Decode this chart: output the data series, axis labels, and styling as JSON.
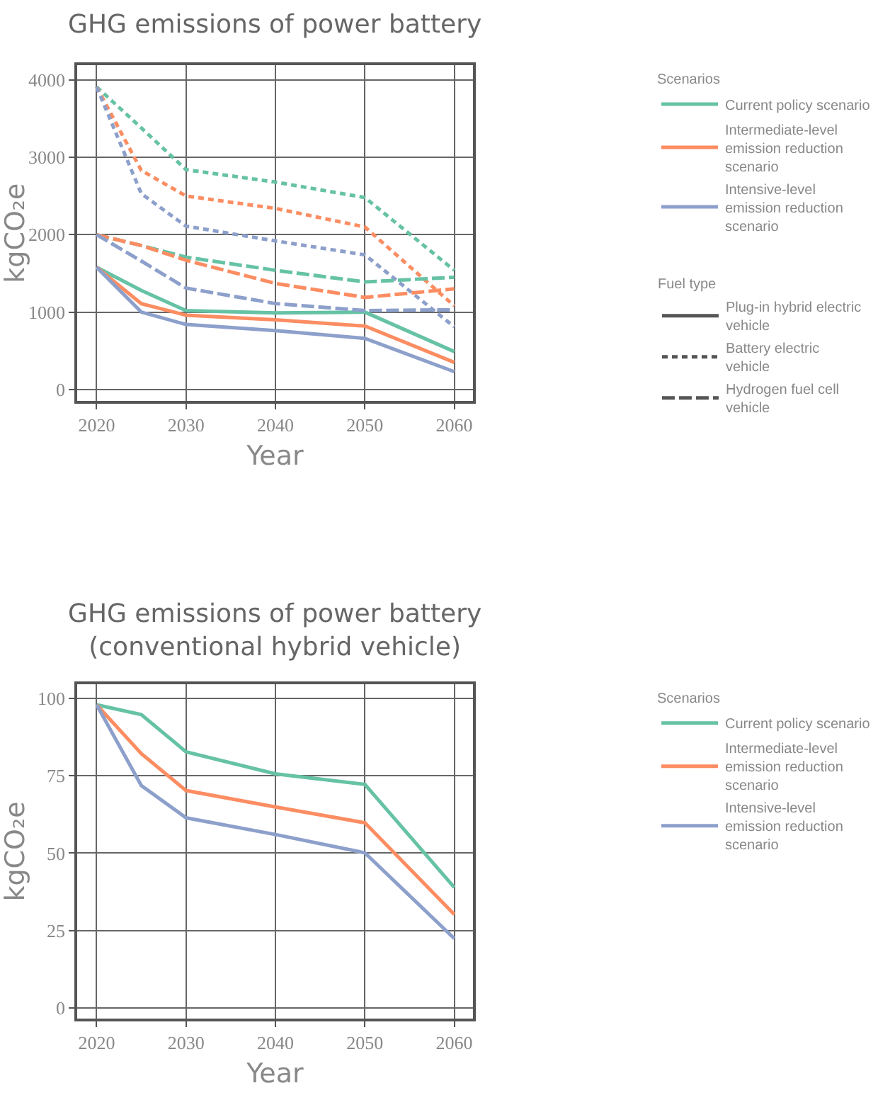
{
  "chart_data": [
    {
      "type": "line",
      "title": "GHG emissions of power battery",
      "xlabel": "Year",
      "ylabel": "kgCO₂e",
      "legend_title": [
        "Scenarios",
        "Fuel type"
      ],
      "legend": "right",
      "grid": true,
      "x": [
        2020,
        2025,
        2030,
        2040,
        2050,
        2060
      ],
      "xlim": [
        2017.8,
        2062.1
      ],
      "xticks": [
        2020,
        2030,
        2040,
        2050,
        2060
      ],
      "ylim": [
        -150,
        4190
      ],
      "yticks": [
        0,
        1000,
        2000,
        3000,
        4000
      ],
      "series": [
        {
          "color": "#66c2a5",
          "line_style": "solid",
          "values": [
            1580,
            1280,
            1020,
            990,
            1000,
            490
          ]
        },
        {
          "color": "#fc8d62",
          "line_style": "solid",
          "values": [
            1580,
            1110,
            960,
            900,
            820,
            350
          ]
        },
        {
          "color": "#8da0cb",
          "line_style": "solid",
          "values": [
            1580,
            1000,
            840,
            760,
            660,
            230
          ]
        },
        {
          "color": "#66c2a5",
          "line_style": "dashed",
          "values": [
            3910,
            3380,
            2840,
            2680,
            2480,
            1540
          ]
        },
        {
          "color": "#fc8d62",
          "line_style": "dashed",
          "values": [
            3910,
            2830,
            2500,
            2340,
            2100,
            1080
          ]
        },
        {
          "color": "#8da0cb",
          "line_style": "dashed",
          "values": [
            3910,
            2530,
            2110,
            1920,
            1740,
            810
          ]
        },
        {
          "color": "#66c2a5",
          "line_style": "longdash",
          "values": [
            2000,
            1860,
            1710,
            1540,
            1390,
            1450
          ]
        },
        {
          "color": "#fc8d62",
          "line_style": "longdash",
          "values": [
            2000,
            1860,
            1670,
            1370,
            1190,
            1300
          ]
        },
        {
          "color": "#8da0cb",
          "line_style": "longdash",
          "values": [
            2000,
            1660,
            1310,
            1110,
            1020,
            1030
          ]
        },
        {
          "name": "Current policy scenario",
          "color": "#66c2a5",
          "line_style": "solid",
          "values": [
            null,
            null,
            null,
            null,
            null,
            null
          ]
        },
        {
          "name": "Intermediate-level emission reduction scenario",
          "color": "#fc8d62",
          "line_style": "solid",
          "values": [
            null,
            null,
            null,
            null,
            null,
            null
          ]
        },
        {
          "name": "Intensive-level emission reduction scenario",
          "color": "#8da0cb",
          "line_style": "solid",
          "values": [
            null,
            null,
            null,
            null,
            null,
            null
          ]
        },
        {
          "name": "Plug-in hybrid electric vehicle",
          "color": "#555555",
          "line_style": "solid",
          "values": [
            null,
            null,
            null,
            null,
            null,
            null
          ]
        },
        {
          "name": "Battery electric vehicle",
          "color": "#555555",
          "line_style": "dashed",
          "values": [
            null,
            null,
            null,
            null,
            null,
            null
          ]
        },
        {
          "name": "Hydrogen fuel cell vehicle",
          "color": "#555555",
          "line_style": "longdash",
          "values": [
            null,
            null,
            null,
            null,
            null,
            null
          ]
        }
      ]
    },
    {
      "type": "line",
      "title": "GHG emissions of power battery\n(conventional hybrid vehicle)",
      "xlabel": "Year",
      "ylabel": "kgCO₂e",
      "legend_title": [
        "Scenarios"
      ],
      "legend": "right",
      "grid": true,
      "x": [
        2020,
        2025,
        2030,
        2040,
        2050,
        2060
      ],
      "xlim": [
        2017.8,
        2062.1
      ],
      "xticks": [
        2020,
        2030,
        2040,
        2050,
        2060
      ],
      "ylim": [
        -3.5,
        104.6
      ],
      "yticks": [
        0,
        25,
        50,
        75,
        100
      ],
      "series": [
        {
          "name": "Current policy scenario",
          "color": "#66c2a5",
          "line_style": "solid",
          "values": [
            97.9,
            94.7,
            82.7,
            75.6,
            72.2,
            38.9
          ]
        },
        {
          "name": "Intermediate-level emission reduction scenario",
          "color": "#fc8d62",
          "line_style": "solid",
          "values": [
            97.9,
            82.1,
            70.2,
            64.9,
            59.8,
            30.2
          ]
        },
        {
          "name": "Intensive-level emission reduction scenario",
          "color": "#8da0cb",
          "line_style": "solid",
          "values": [
            97.9,
            71.8,
            61.4,
            56.0,
            50.1,
            22.4
          ]
        }
      ]
    }
  ]
}
